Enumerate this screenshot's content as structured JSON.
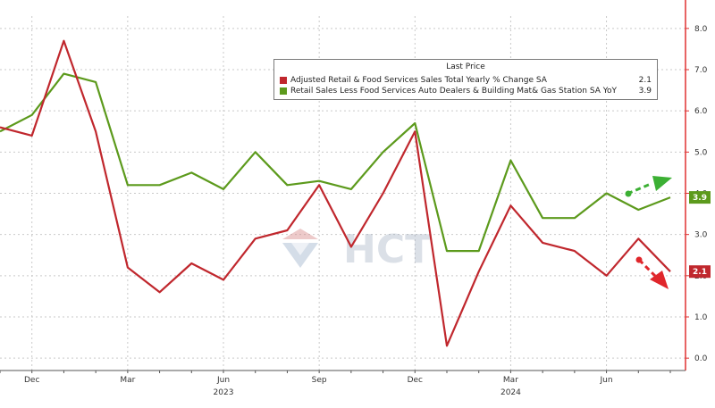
{
  "chart_data": {
    "type": "line",
    "x": [
      "Nov 2022",
      "Dec 2022",
      "Jan 2023",
      "Feb 2023",
      "Mar 2023",
      "Apr 2023",
      "May 2023",
      "Jun 2023",
      "Jul 2023",
      "Aug 2023",
      "Sep 2023",
      "Oct 2023",
      "Nov 2023",
      "Dec 2023",
      "Jan 2024",
      "Feb 2024",
      "Mar 2024",
      "Apr 2024",
      "May 2024",
      "Jun 2024",
      "Jul 2024",
      "Aug 2024"
    ],
    "series": [
      {
        "name": "Adjusted Retail & Food Services Sales Total Yearly % Change SA",
        "color": "#c0272d",
        "last": "2.1",
        "values": [
          5.6,
          5.4,
          7.7,
          5.5,
          2.2,
          1.6,
          2.3,
          1.9,
          2.9,
          3.1,
          4.2,
          2.7,
          4.0,
          5.5,
          0.3,
          2.1,
          3.7,
          2.8,
          2.6,
          2.0,
          2.9,
          2.1
        ]
      },
      {
        "name": "Retail Sales Less Food Services Auto Dealers & Building Mat& Gas Station SA YoY",
        "color": "#5c9a1c",
        "last": "3.9",
        "values": [
          5.5,
          5.9,
          6.9,
          6.7,
          4.2,
          4.2,
          4.5,
          4.1,
          5.0,
          4.2,
          4.3,
          4.1,
          5.0,
          5.7,
          2.6,
          2.6,
          4.8,
          3.4,
          3.4,
          4.0,
          3.6,
          3.9
        ]
      }
    ],
    "ylim": [
      -0.3,
      8.3
    ],
    "y_ticks": [
      "0.0",
      "1.0",
      "2.0",
      "3.0",
      "4.0",
      "5.0",
      "6.0",
      "7.0",
      "8.0"
    ],
    "x_tick_labels": [
      {
        "label": "Dec",
        "index": 1
      },
      {
        "label": "Mar",
        "index": 4
      },
      {
        "label": "Jun",
        "index": 7
      },
      {
        "label": "Sep",
        "index": 10
      },
      {
        "label": "Dec",
        "index": 13
      },
      {
        "label": "Mar",
        "index": 16
      },
      {
        "label": "Jun",
        "index": 19
      }
    ],
    "year_labels": [
      {
        "label": "2023",
        "index": 7
      },
      {
        "label": "2024",
        "index": 16
      }
    ],
    "legend": {
      "title": "Last Price",
      "position": "top-right"
    },
    "grid": true,
    "y_axis_side": "right",
    "y_axis_color": "#e03030"
  },
  "watermark": {
    "text": "HCT"
  }
}
